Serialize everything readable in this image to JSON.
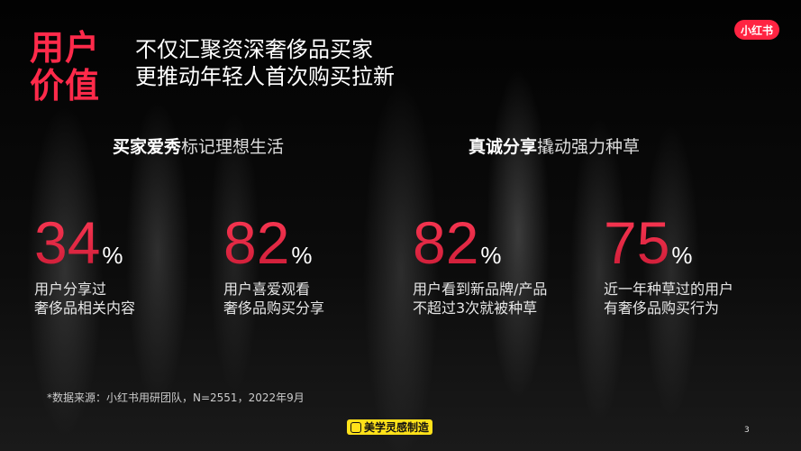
{
  "header": {
    "title_line1": "用户",
    "title_line2": "价值",
    "subtitle_line1": "不仅汇聚资深奢侈品买家",
    "subtitle_line2": "更推动年轻人首次购买拉新",
    "logo_text": "小红书"
  },
  "sections": [
    {
      "bold": "买家爱秀",
      "rest": "标记理想生活"
    },
    {
      "bold": "真诚分享",
      "rest": "撬动强力种草"
    }
  ],
  "stats": [
    {
      "value": "34",
      "unit": "%",
      "line1": "用户分享过",
      "line2": "奢侈品相关内容"
    },
    {
      "value": "82",
      "unit": "%",
      "line1": "用户喜爱观看",
      "line2": "奢侈品购买分享"
    },
    {
      "value": "82",
      "unit": "%",
      "line1": "用户看到新品牌/产品",
      "line2": "不超过3次就被种草"
    },
    {
      "value": "75",
      "unit": "%",
      "line1": "近一年种草过的用户",
      "line2": "有奢侈品购买行为"
    }
  ],
  "footer": {
    "source": "*数据来源：小红书用研团队，N=2551，2022年9月",
    "badge": "美学灵感制造",
    "page_number": "3"
  },
  "colors": {
    "accent": "#ff2a4a",
    "badge": "#ffe11a",
    "logo": "#ff2442"
  }
}
